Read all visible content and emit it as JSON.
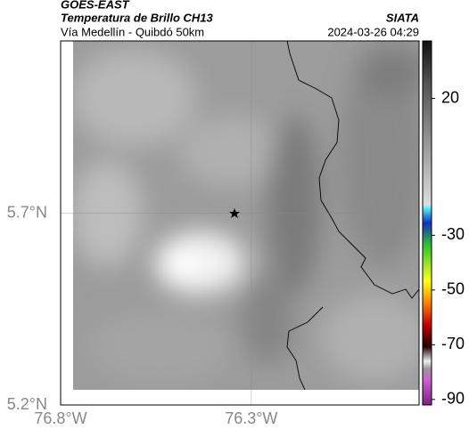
{
  "header": {
    "source": "GOES-EAST",
    "product": "Temperatura de Brillo CH13",
    "region": "Vía Medellín - Quibdó 50km",
    "brand": "SIATA",
    "timestamp": "2024-03-26 04:29"
  },
  "map": {
    "xlim": [
      -76.8,
      -75.86
    ],
    "ylim": [
      5.2,
      6.15
    ],
    "xticks": [
      {
        "value": -76.8,
        "label": "76.8°W"
      },
      {
        "value": -76.3,
        "label": "76.3°W"
      }
    ],
    "yticks": [
      {
        "value": 5.7,
        "label": "5.7°N"
      },
      {
        "value": 5.2,
        "label": "5.2°N"
      }
    ]
  },
  "colorbar": {
    "lim": [
      -92,
      41
    ],
    "ticks": [
      20,
      -30,
      -50,
      -70,
      -90
    ]
  }
}
